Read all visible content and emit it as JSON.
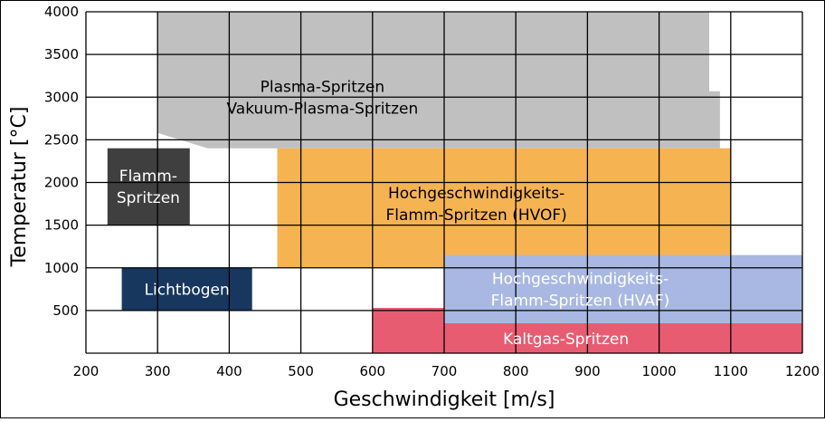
{
  "chart_data": {
    "type": "range-area",
    "title": "",
    "xlabel": "Geschwindigkeit [m/s]",
    "ylabel": "Temperatur [°C]",
    "xlim": [
      200,
      1200
    ],
    "ylim": [
      0,
      4000
    ],
    "xticks": [
      200,
      300,
      400,
      500,
      600,
      700,
      800,
      900,
      1000,
      1100,
      1200
    ],
    "yticks": [
      500,
      1000,
      1500,
      2000,
      2500,
      3000,
      3500,
      4000
    ],
    "grid": true,
    "regions": [
      {
        "id": "plasma",
        "label_lines": [
          "Plasma-Spritzen",
          "Vakuum-Plasma-Spritzen"
        ],
        "fill": "#c0c0c0",
        "text_color": "#000000",
        "polygon": [
          [
            300,
            4000
          ],
          [
            1070,
            4000
          ],
          [
            1070,
            3070
          ],
          [
            1085,
            3070
          ],
          [
            1085,
            2400
          ],
          [
            370,
            2400
          ],
          [
            300,
            2580
          ]
        ],
        "label_at": [
          530,
          3000
        ]
      },
      {
        "id": "flamm",
        "label_lines": [
          "Flamm-",
          "Spritzen"
        ],
        "fill": "#3f3f3f",
        "text_color": "#ffffff",
        "polygon": [
          [
            230,
            2400
          ],
          [
            345,
            2400
          ],
          [
            345,
            1500
          ],
          [
            230,
            1500
          ]
        ],
        "label_at": [
          287,
          1950
        ]
      },
      {
        "id": "hvof",
        "label_lines": [
          "Hochgeschwindigkeits-",
          "Flamm-Spritzen (HVOF)"
        ],
        "fill": "#f6b352",
        "text_color": "#000000",
        "polygon": [
          [
            467,
            2400
          ],
          [
            1100,
            2400
          ],
          [
            1100,
            1000
          ],
          [
            467,
            1000
          ]
        ],
        "label_at": [
          745,
          1750
        ]
      },
      {
        "id": "lichtbogen",
        "label_lines": [
          "Lichtbogen"
        ],
        "fill": "#17375e",
        "text_color": "#ffffff",
        "polygon": [
          [
            250,
            1000
          ],
          [
            432,
            1000
          ],
          [
            432,
            500
          ],
          [
            250,
            500
          ]
        ],
        "label_at": [
          341,
          750
        ]
      },
      {
        "id": "hvaf",
        "label_lines": [
          "Hochgeschwindigkeits-",
          "Flamm-Spritzen (HVAF)"
        ],
        "fill": "#a9b8e2",
        "text_color": "#ffffff",
        "polygon": [
          [
            700,
            1150
          ],
          [
            1200,
            1150
          ],
          [
            1200,
            350
          ],
          [
            700,
            350
          ]
        ],
        "label_at": [
          890,
          750
        ]
      },
      {
        "id": "kaltgas",
        "label_lines": [
          "Kaltgas-Spritzen"
        ],
        "fill": "#e85c72",
        "text_color": "#ffffff",
        "polygon": [
          [
            600,
            530
          ],
          [
            700,
            530
          ],
          [
            700,
            350
          ],
          [
            1200,
            350
          ],
          [
            1200,
            0
          ],
          [
            600,
            0
          ]
        ],
        "label_at": [
          870,
          170
        ]
      }
    ]
  }
}
